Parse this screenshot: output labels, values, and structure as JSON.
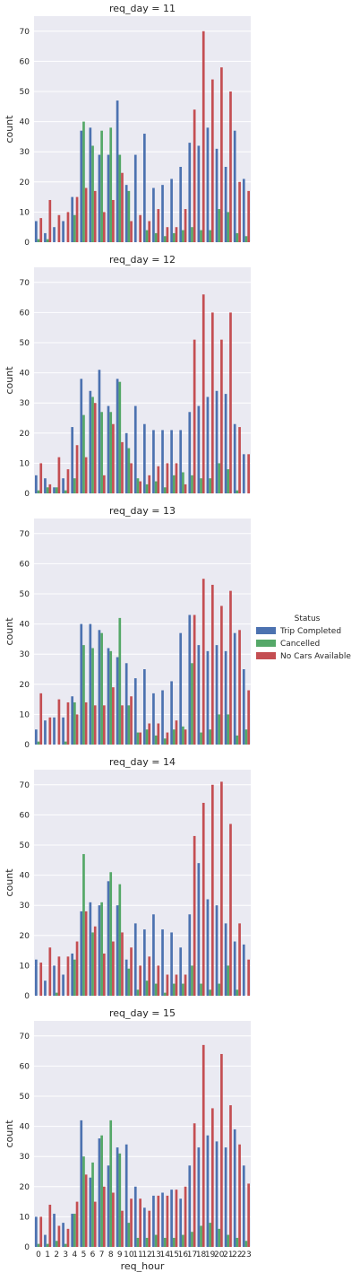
{
  "chart_data": {
    "type": "bar",
    "style": "seaborn-darkgrid",
    "background_color": "#EAEAF2",
    "grid": true,
    "grid_color": "#FFFFFF",
    "legend_placement": "right",
    "legend_title": "Status",
    "xlabel": "req_hour",
    "ylabel": "count",
    "ylim": [
      0,
      75
    ],
    "yticks": [
      0,
      10,
      20,
      30,
      40,
      50,
      60,
      70
    ],
    "categories": [
      "0",
      "1",
      "2",
      "3",
      "4",
      "5",
      "6",
      "7",
      "8",
      "9",
      "10",
      "11",
      "12",
      "13",
      "14",
      "15",
      "16",
      "17",
      "18",
      "19",
      "20",
      "21",
      "22",
      "23"
    ],
    "series_meta": [
      {
        "name": "Trip Completed",
        "color": "#4C72B0"
      },
      {
        "name": "Cancelled",
        "color": "#55A868"
      },
      {
        "name": "No Cars Available",
        "color": "#C44E52"
      }
    ],
    "facets": [
      {
        "title": "req_day = 11",
        "series": [
          {
            "name": "Trip Completed",
            "values": [
              7,
              3,
              5,
              7,
              15,
              37,
              38,
              29,
              29,
              47,
              19,
              29,
              36,
              18,
              19,
              21,
              25,
              33,
              32,
              38,
              31,
              25,
              37,
              21
            ]
          },
          {
            "name": "Cancelled",
            "values": [
              1,
              1,
              0,
              0,
              9,
              40,
              32,
              37,
              38,
              29,
              17,
              0,
              4,
              3,
              2,
              3,
              4,
              5,
              4,
              4,
              11,
              10,
              3,
              2
            ]
          },
          {
            "name": "No Cars Available",
            "values": [
              8,
              14,
              9,
              10,
              15,
              18,
              17,
              10,
              14,
              23,
              7,
              9,
              7,
              11,
              5,
              5,
              11,
              44,
              70,
              54,
              58,
              50,
              20,
              17
            ]
          }
        ]
      },
      {
        "title": "req_day = 12",
        "series": [
          {
            "name": "Trip Completed",
            "values": [
              6,
              5,
              2,
              5,
              22,
              38,
              34,
              41,
              29,
              38,
              20,
              29,
              23,
              21,
              21,
              21,
              21,
              27,
              29,
              32,
              34,
              33,
              23,
              13
            ]
          },
          {
            "name": "Cancelled",
            "values": [
              1,
              2,
              2,
              1,
              5,
              26,
              32,
              27,
              27,
              37,
              15,
              5,
              3,
              4,
              2,
              6,
              7,
              6,
              5,
              5,
              10,
              8,
              1,
              0
            ]
          },
          {
            "name": "No Cars Available",
            "values": [
              10,
              3,
              12,
              8,
              16,
              12,
              30,
              6,
              23,
              17,
              10,
              4,
              6,
              9,
              10,
              10,
              3,
              51,
              66,
              60,
              51,
              60,
              22,
              13
            ]
          }
        ]
      },
      {
        "title": "req_day = 13",
        "series": [
          {
            "name": "Trip Completed",
            "values": [
              5,
              8,
              9,
              9,
              16,
              40,
              40,
              38,
              32,
              29,
              27,
              22,
              25,
              17,
              18,
              21,
              37,
              43,
              33,
              31,
              33,
              31,
              37,
              25
            ]
          },
          {
            "name": "Cancelled",
            "values": [
              1,
              0,
              0,
              1,
              14,
              33,
              32,
              37,
              31,
              42,
              13,
              4,
              5,
              3,
              2,
              5,
              6,
              27,
              4,
              5,
              10,
              10,
              3,
              5
            ]
          },
          {
            "name": "No Cars Available",
            "values": [
              17,
              9,
              15,
              14,
              10,
              14,
              13,
              13,
              19,
              13,
              16,
              4,
              7,
              7,
              4,
              8,
              5,
              43,
              55,
              53,
              46,
              51,
              38,
              18
            ]
          }
        ]
      },
      {
        "title": "req_day = 14",
        "series": [
          {
            "name": "Trip Completed",
            "values": [
              12,
              5,
              10,
              7,
              14,
              28,
              31,
              30,
              38,
              30,
              12,
              24,
              22,
              27,
              22,
              21,
              16,
              27,
              44,
              32,
              30,
              24,
              18,
              17
            ]
          },
          {
            "name": "Cancelled",
            "values": [
              0,
              0,
              1,
              0,
              12,
              47,
              21,
              31,
              41,
              37,
              9,
              2,
              5,
              4,
              1,
              4,
              4,
              10,
              4,
              2,
              4,
              10,
              2,
              0
            ]
          },
          {
            "name": "No Cars Available",
            "values": [
              11,
              16,
              13,
              13,
              18,
              28,
              23,
              14,
              18,
              21,
              16,
              10,
              13,
              10,
              7,
              7,
              7,
              53,
              64,
              70,
              71,
              57,
              24,
              12
            ]
          }
        ]
      },
      {
        "title": "req_day = 15",
        "series": [
          {
            "name": "Trip Completed",
            "values": [
              10,
              4,
              11,
              8,
              11,
              42,
              23,
              36,
              27,
              33,
              34,
              20,
              13,
              17,
              18,
              19,
              16,
              27,
              33,
              37,
              35,
              33,
              39,
              27
            ]
          },
          {
            "name": "Cancelled",
            "values": [
              1,
              1,
              2,
              1,
              11,
              30,
              28,
              37,
              42,
              31,
              8,
              3,
              3,
              4,
              3,
              3,
              4,
              5,
              7,
              8,
              6,
              4,
              3,
              2
            ]
          },
          {
            "name": "No Cars Available",
            "values": [
              10,
              14,
              7,
              6,
              15,
              24,
              15,
              20,
              18,
              12,
              16,
              16,
              12,
              17,
              17,
              19,
              20,
              41,
              67,
              46,
              64,
              47,
              34,
              21
            ]
          }
        ]
      }
    ]
  }
}
